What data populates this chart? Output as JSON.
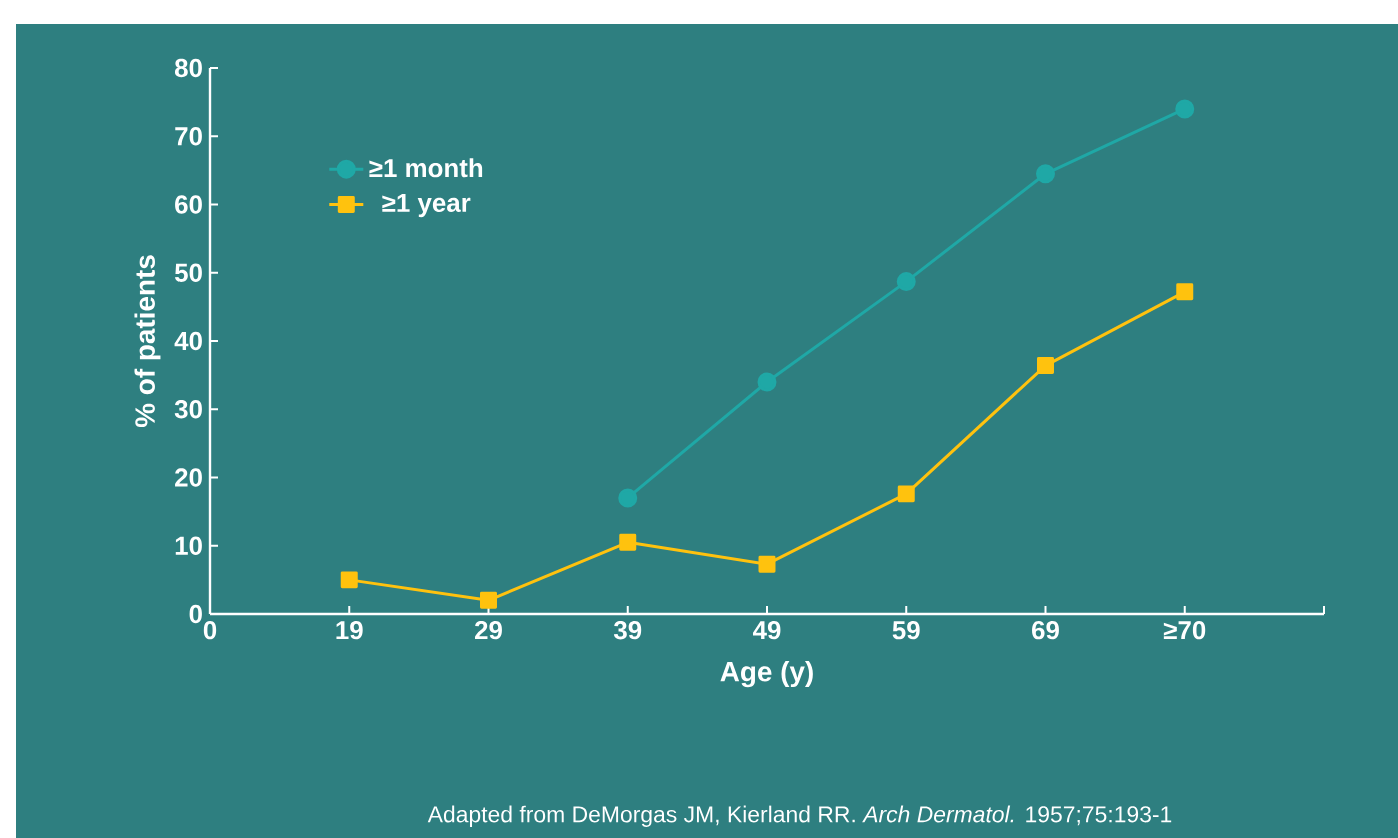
{
  "chart_data": {
    "type": "line",
    "xlabel": "Age (y)",
    "ylabel": "% of patients",
    "categories": [
      "0",
      "19",
      "29",
      "39",
      "49",
      "59",
      "69",
      "≥70"
    ],
    "series": [
      {
        "name": "≥1 month",
        "color": "#1fa8a6",
        "marker": "circle",
        "values": [
          null,
          null,
          null,
          17,
          34,
          48.7,
          64.5,
          74
        ]
      },
      {
        "name": "≥1 year",
        "color": "#ffc20e",
        "marker": "square",
        "values": [
          null,
          5,
          2,
          10.5,
          7.3,
          17.6,
          36.4,
          47.2
        ]
      }
    ],
    "ylim": [
      0,
      80
    ],
    "yticks": [
      0,
      10,
      20,
      30,
      40,
      50,
      60,
      70,
      80
    ],
    "legend": "top left",
    "grid": false,
    "annotations": [
      "Adapted from DeMorgas JM, Kierland RR. *Arch Dermatol.* 1957;75:193-1"
    ]
  }
}
